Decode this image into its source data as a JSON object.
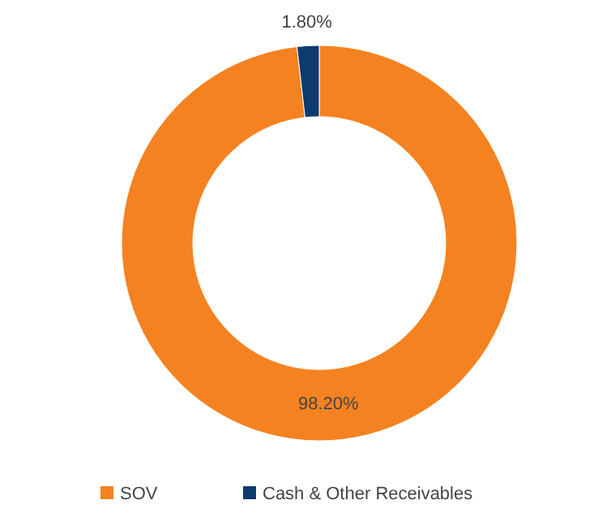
{
  "chart_data": {
    "type": "donut",
    "categories": [
      "SOV",
      "Cash & Other Receivables"
    ],
    "values": [
      98.2,
      1.8
    ],
    "colors": [
      "#f58220",
      "#0d3b6e"
    ],
    "value_labels": [
      "98.20%",
      "1.80%"
    ],
    "legend": "bottom"
  }
}
